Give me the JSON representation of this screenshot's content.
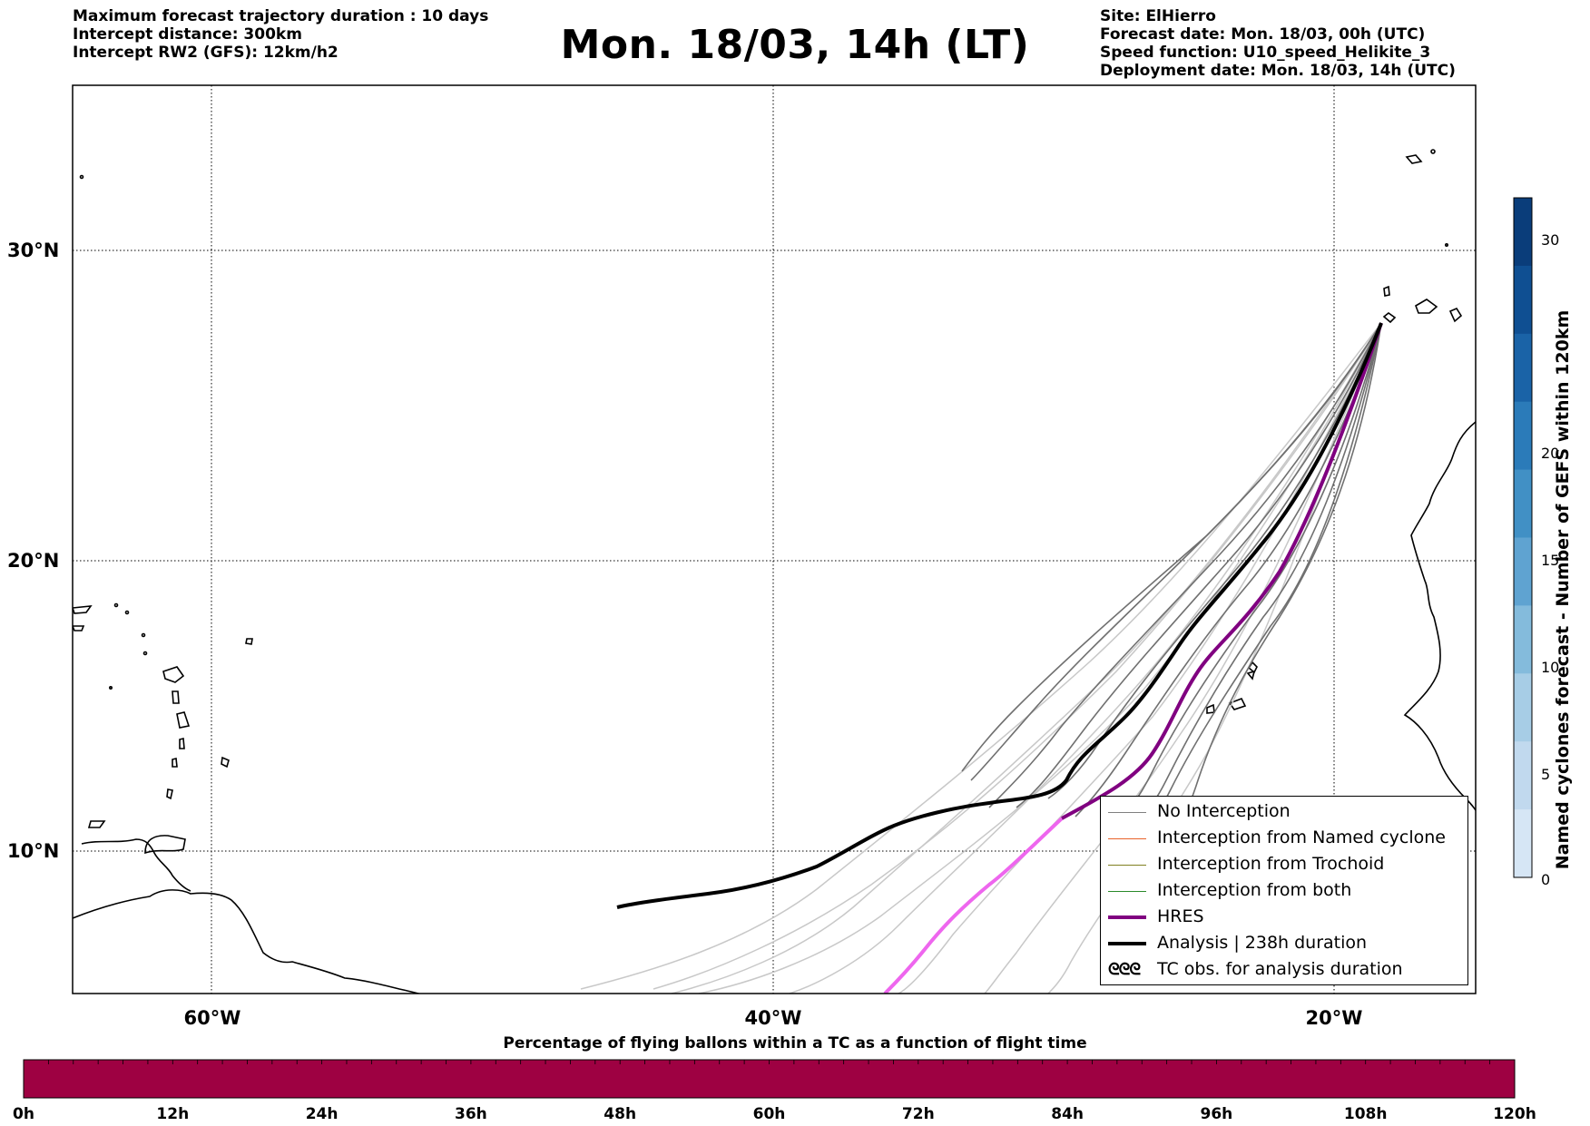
{
  "header_left": [
    "Maximum forecast trajectory duration : 10 days",
    "Intercept distance: 300km",
    "Intercept RW2 (GFS):  12km/h2"
  ],
  "title": "Mon. 18/03, 14h (LT)",
  "header_right": [
    "Site: ElHierro",
    "Forecast date: Mon. 18/03, 00h (UTC)",
    "Speed function: U10_speed_Helikite_3",
    "Deployment date: Mon. 18/03, 14h (UTC)"
  ],
  "map": {
    "lat_range": [
      5.4,
      34.8
    ],
    "lon_range": [
      -65,
      -15
    ],
    "lat_ticks": [
      "30°N",
      "20°N",
      "10°N"
    ],
    "lon_ticks": [
      "60°W",
      "40°W",
      "20°W"
    ],
    "grid": "dotted"
  },
  "legend": {
    "items": [
      {
        "label": "No Interception",
        "color": "#808080"
      },
      {
        "label": "Interception from Named cyclone",
        "color": "#e8622a"
      },
      {
        "label": "Interception from Trochoid",
        "color": "#808020"
      },
      {
        "label": "Interception from both",
        "color": "#2a8a2a"
      },
      {
        "label": "HRES",
        "color": "#800080"
      },
      {
        "label": "Analysis | 238h duration",
        "color": "#000000"
      },
      {
        "label": "TC obs. for analysis duration",
        "color": "#000000",
        "icon": "tc-symbol-icon",
        "symbol": "ᘓᘓᘓ"
      }
    ]
  },
  "colorbar": {
    "label": "Named cyclones forecast - Number of GEFS within 120km",
    "ticks": [
      "30",
      "20",
      "15",
      "10",
      "5",
      "0"
    ],
    "colors": [
      "#d6e6f5",
      "#c1d9ee",
      "#a7cde6",
      "#84bbdc",
      "#5fa3d1",
      "#4190c5",
      "#2b7bb9",
      "#1a63a7",
      "#0f4f92",
      "#0a3d7a"
    ]
  },
  "percentage_bar": {
    "title": "Percentage of flying ballons within a TC as a function of flight time",
    "ticks": [
      "0h",
      "12h",
      "24h",
      "36h",
      "48h",
      "60h",
      "72h",
      "84h",
      "96h",
      "108h",
      "120h"
    ],
    "color": "#9e0142"
  }
}
